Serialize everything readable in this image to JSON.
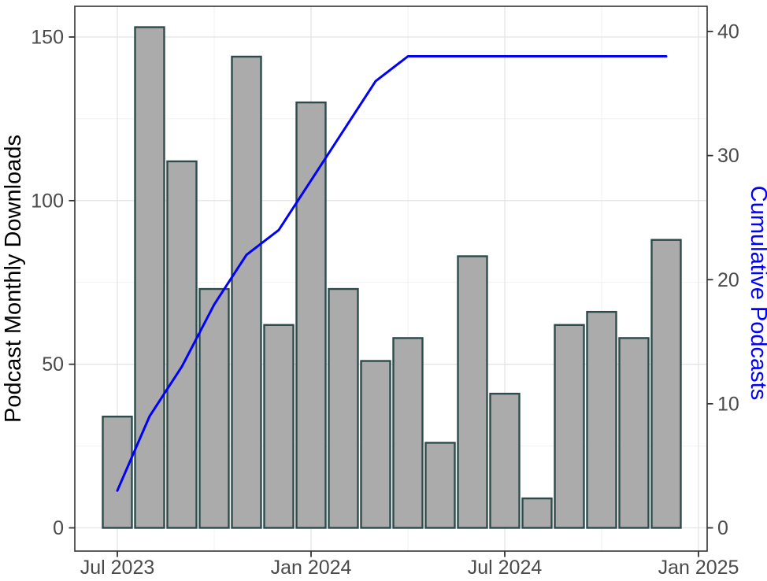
{
  "chart_data": {
    "type": "bar+line",
    "title": "",
    "categories": [
      "Jul 2023",
      "Aug 2023",
      "Sep 2023",
      "Oct 2023",
      "Nov 2023",
      "Dec 2023",
      "Jan 2024",
      "Feb 2024",
      "Mar 2024",
      "Apr 2024",
      "May 2024",
      "Jun 2024",
      "Jul 2024",
      "Aug 2024",
      "Sep 2024",
      "Oct 2024",
      "Nov 2024",
      "Dec 2024"
    ],
    "series": [
      {
        "name": "Podcast Monthly Downloads",
        "type": "bar",
        "axis": "left",
        "values": [
          34,
          153,
          112,
          73,
          144,
          62,
          130,
          73,
          51,
          58,
          26,
          83,
          41,
          9,
          62,
          66,
          58,
          88
        ]
      },
      {
        "name": "Cumulative Podcasts",
        "type": "line",
        "axis": "right",
        "values": [
          3,
          9,
          13,
          18,
          22,
          24,
          28,
          32,
          36,
          38,
          38,
          38,
          38,
          38,
          38,
          38,
          38,
          38
        ]
      }
    ],
    "x_axis": {
      "tick_labels": [
        "Jul 2023",
        "Jan 2024",
        "Jul 2024",
        "Jan 2025"
      ],
      "tick_month_indices": [
        0,
        6,
        12,
        18
      ],
      "minor_month_indices": [
        3,
        9,
        15
      ]
    },
    "left_axis": {
      "title": "Podcast Monthly Downloads",
      "tick_labels": [
        "0",
        "50",
        "100",
        "150"
      ],
      "ticks": [
        0,
        50,
        100,
        150
      ],
      "minor_ticks": [
        25,
        75,
        125
      ],
      "range": [
        0,
        150
      ]
    },
    "right_axis": {
      "title": "Cumulative Podcasts",
      "tick_labels": [
        "0",
        "10",
        "20",
        "30",
        "40"
      ],
      "ticks": [
        0,
        10,
        20,
        30,
        40
      ],
      "range": [
        0,
        40
      ]
    },
    "grid": true,
    "legend": false,
    "colors": {
      "bar_fill": "#ABABAB",
      "bar_border": "#2E4B4B",
      "line": "#0000FB",
      "grid_major": "#E4E4E4",
      "grid_minor": "#F1F1F1",
      "panel_border": "#333333",
      "tick_mark": "#333333",
      "tick_label": "#4A4A4A",
      "left_title": "#000000",
      "right_title": "#0000FB"
    }
  }
}
